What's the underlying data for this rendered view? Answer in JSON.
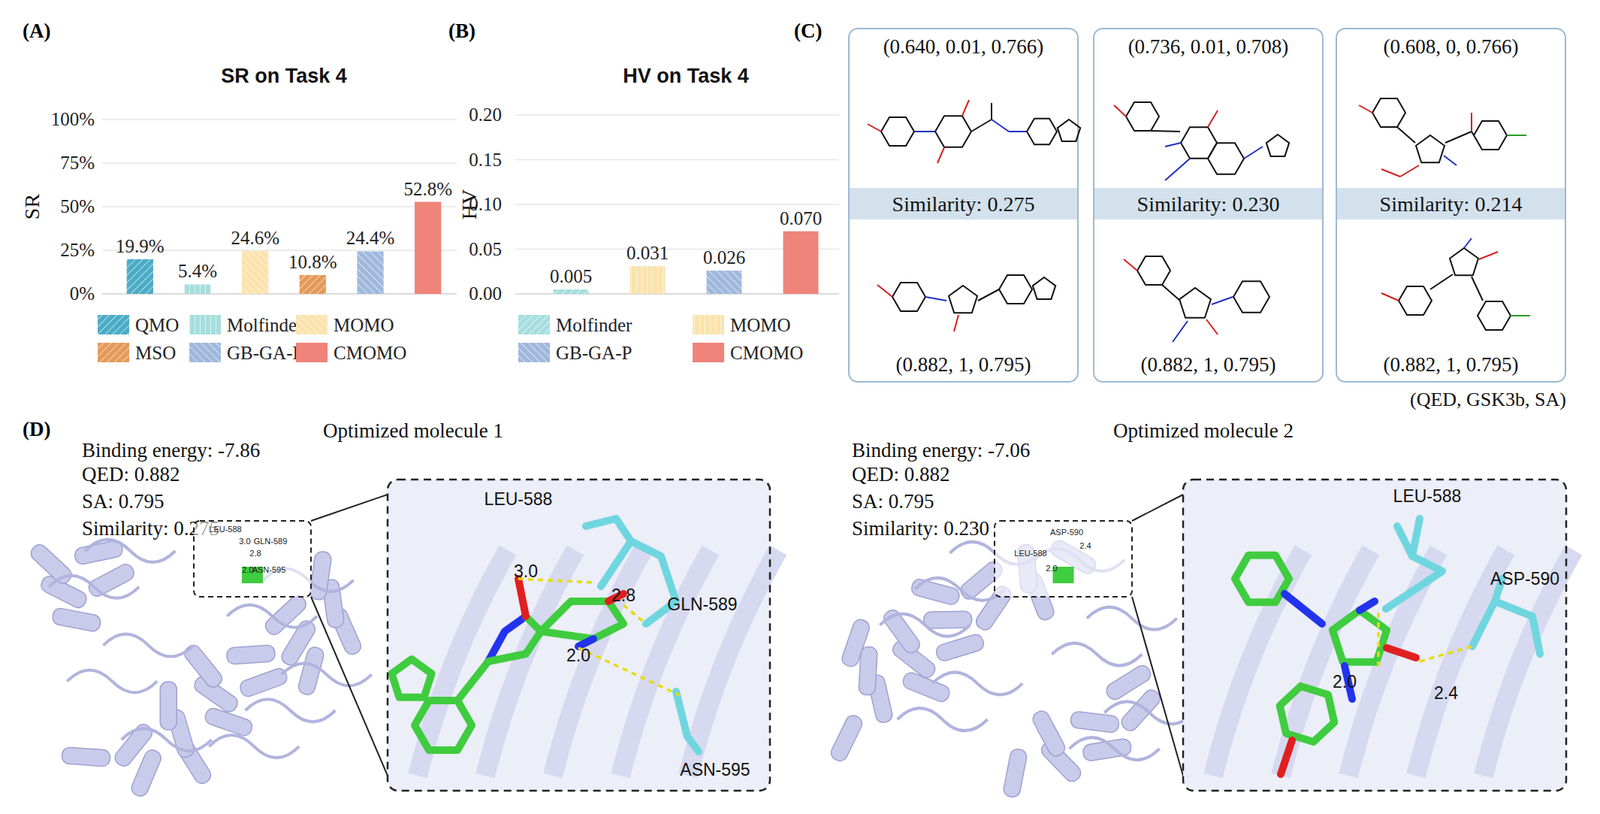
{
  "chart_data": [
    {
      "type": "bar",
      "title": "SR on Task 4",
      "ylabel": "SR",
      "categories": [
        "QMO",
        "Molfinder",
        "MOMO",
        "MSO",
        "GB-GA-P",
        "CMOMO"
      ],
      "values": [
        19.9,
        5.4,
        24.6,
        10.8,
        24.4,
        52.8
      ],
      "value_labels": [
        "19.9%",
        "5.4%",
        "24.6%",
        "10.8%",
        "24.4%",
        "52.8%"
      ],
      "colors": [
        "#4bacc6",
        "#a6dede",
        "#fbe3ad",
        "#e59a5a",
        "#9fb8dc",
        "#f0837a"
      ],
      "ylim": [
        0,
        100
      ],
      "yticks": [
        {
          "value": 0,
          "label": "0%"
        },
        {
          "value": 25,
          "label": "25%"
        },
        {
          "value": 50,
          "label": "50%"
        },
        {
          "value": 75,
          "label": "75%"
        },
        {
          "value": 100,
          "label": "100%"
        }
      ],
      "grid": true,
      "data_labels": true,
      "legend": "bottom",
      "tick_labels": "y"
    },
    {
      "type": "bar",
      "title": "HV on Task 4",
      "ylabel": "HV",
      "categories": [
        "Molfinder",
        "MOMO",
        "GB-GA-P",
        "CMOMO"
      ],
      "values": [
        0.005,
        0.031,
        0.026,
        0.07
      ],
      "value_labels": [
        "0.005",
        "0.031",
        "0.026",
        "0.070"
      ],
      "colors": [
        "#a6dede",
        "#fbe3ad",
        "#9fb8dc",
        "#f0837a"
      ],
      "ylim": [
        0,
        0.2
      ],
      "yticks": [
        {
          "value": 0,
          "label": "0.00"
        },
        {
          "value": 0.05,
          "label": "0.05"
        },
        {
          "value": 0.1,
          "label": "0.10"
        },
        {
          "value": 0.15,
          "label": "0.15"
        },
        {
          "value": 0.2,
          "label": "0.20"
        }
      ],
      "grid": true,
      "data_labels": true,
      "legend": "bottom",
      "tick_labels": "y"
    }
  ],
  "panel_labels": {
    "a": "(A)",
    "b": "(B)",
    "c": "(C)",
    "d": "(D)"
  },
  "molecule_examples": {
    "pairs": [
      {
        "original_scores": "(0.640, 0.01, 0.766)",
        "similarity": "Similarity: 0.275",
        "optimized_scores": "(0.882, 1, 0.795)"
      },
      {
        "original_scores": "(0.736, 0.01, 0.708)",
        "similarity": "Similarity: 0.230",
        "optimized_scores": "(0.882, 1, 0.795)"
      },
      {
        "original_scores": "(0.608, 0, 0.766)",
        "similarity": "Similarity: 0.214",
        "optimized_scores": "(0.882, 1, 0.795)"
      }
    ],
    "score_order": "(QED, GSK3b, SA)"
  },
  "docking": [
    {
      "title": "Optimized molecule 1",
      "info": [
        "Binding energy: -7.86",
        "QED: 0.882",
        "SA: 0.795",
        "Similarity: 0.275"
      ],
      "residues": [
        "LEU-588",
        "GLN-589",
        "ASN-595"
      ],
      "distances": [
        "3.0",
        "2.8",
        "2.0"
      ]
    },
    {
      "title": "Optimized molecule 2",
      "info": [
        "Binding energy: -7.06",
        "QED: 0.882",
        "SA: 0.795",
        "Similarity: 0.230"
      ],
      "residues": [
        "LEU-588",
        "ASP-590"
      ],
      "distances": [
        "2.0",
        "2.4"
      ]
    }
  ]
}
